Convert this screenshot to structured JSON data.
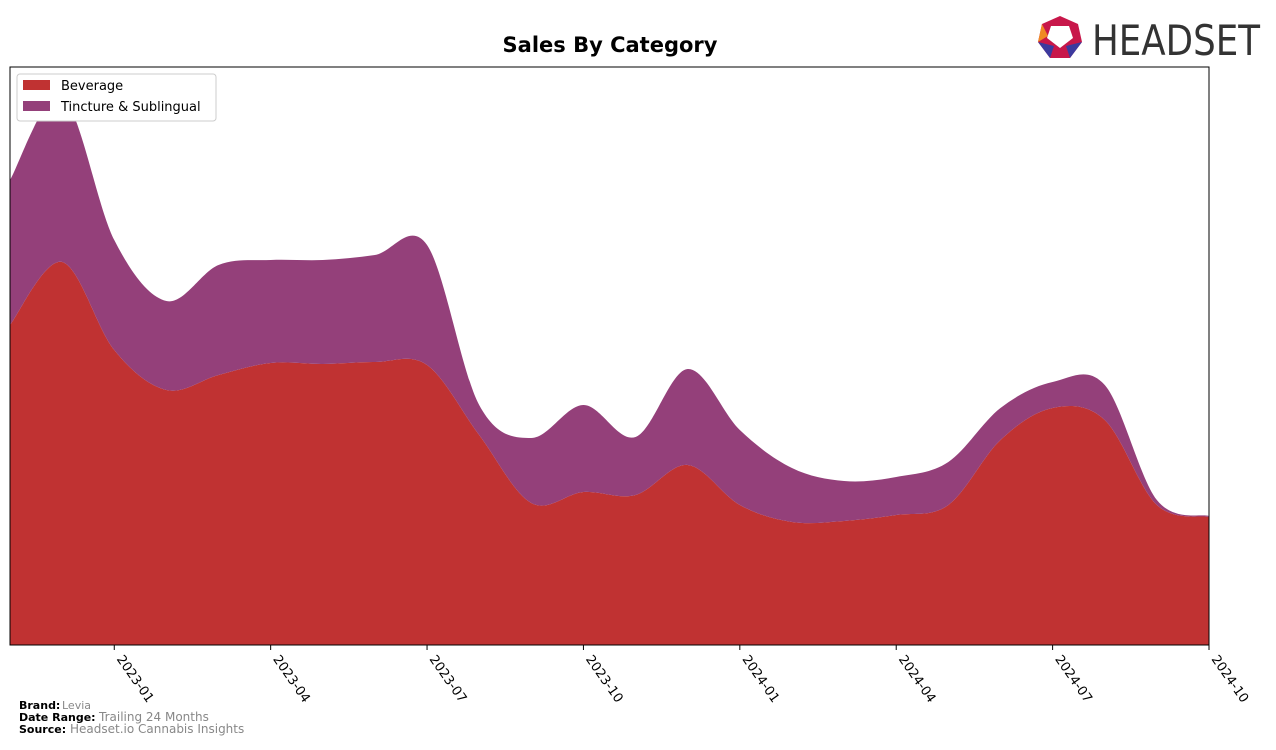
{
  "chart_data": {
    "type": "area",
    "stacked": true,
    "title": "Sales By Category",
    "x": [
      "2022-11",
      "2022-12",
      "2023-01",
      "2023-02",
      "2023-03",
      "2023-04",
      "2023-05",
      "2023-06",
      "2023-07",
      "2023-08",
      "2023-09",
      "2023-10",
      "2023-11",
      "2023-12",
      "2024-01",
      "2024-02",
      "2024-03",
      "2024-04",
      "2024-05",
      "2024-06",
      "2024-07",
      "2024-08",
      "2024-09",
      "2024-10"
    ],
    "xlim": [
      "2022-11",
      "2024-10"
    ],
    "xticks": [
      "2023-01",
      "2023-04",
      "2023-07",
      "2023-10",
      "2024-01",
      "2024-04",
      "2024-07",
      "2024-10"
    ],
    "ylim": [
      0,
      578
    ],
    "legend": "upper left",
    "series": [
      {
        "name": "Beverage",
        "color": "#c03232",
        "values": [
          320,
          383,
          295,
          255,
          270,
          282,
          281,
          283,
          280,
          210,
          142,
          153,
          150,
          180,
          140,
          123,
          124,
          130,
          140,
          205,
          237,
          225,
          140,
          128
        ]
      },
      {
        "name": "Tincture & Sublingual",
        "color": "#94407a",
        "values": [
          145,
          165,
          110,
          89,
          110,
          103,
          104,
          107,
          120,
          30,
          65,
          87,
          58,
          96,
          75,
          54,
          40,
          38,
          43,
          32,
          26,
          35,
          5,
          1
        ]
      }
    ]
  },
  "logo": "HEADSET",
  "footer": {
    "brand_label": "Brand:",
    "brand": "Levia",
    "range_label": "Date Range:",
    "range": "Trailing 24 Months",
    "source_label": "Source:",
    "source": "Headset.io Cannabis Insights"
  }
}
